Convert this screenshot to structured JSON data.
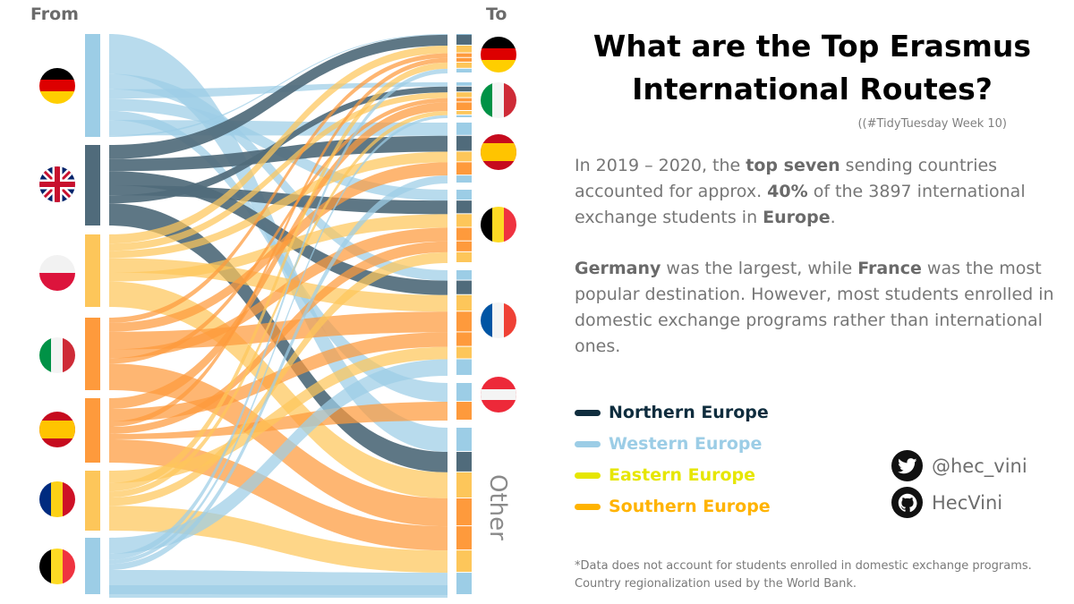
{
  "headers": {
    "from": "From",
    "to": "To"
  },
  "title_line1": "What are the Top Erasmus",
  "title_line2": "International Routes?",
  "subtitle": "((#TidyTuesday Week 10)",
  "paragraph1": {
    "t1": "In 2019 – 2020, the ",
    "b1": "top seven",
    "t2": " sending countries accounted for approx. ",
    "b2": "40%",
    "t3": " of the 3897 international exchange students in ",
    "b3": "Europe",
    "t4": "."
  },
  "paragraph2": {
    "b1": "Germany",
    "t1": " was the largest, while ",
    "b2": "France",
    "t2": " was the most popular destination. However, most students enrolled in domestic exchange programs rather than international ones."
  },
  "legend": [
    {
      "label": "Northern Europe",
      "color": "#0f2d3e"
    },
    {
      "label": "Western Europe",
      "color": "#9ccde6"
    },
    {
      "label": "Eastern Europe",
      "color": "#e6e600"
    },
    {
      "label": "Southern Europe",
      "color": "#ffb300"
    }
  ],
  "social": {
    "twitter": "@hec_vini",
    "github": "HecVini",
    "twitter_icon": "twitter-icon",
    "github_icon": "github-icon"
  },
  "footnote": "*Data does not account for students enrolled in domestic exchange programs. Country regionalization used by the World Bank.",
  "chart_data": {
    "type": "sankey",
    "region_colors": {
      "Northern": "#506b7b",
      "Western": "#9ccde6",
      "Eastern": "#fdc65a",
      "Southern": "#fe9a3c"
    },
    "sources": [
      {
        "name": "Germany",
        "flag": "de",
        "region": "Western"
      },
      {
        "name": "United Kingdom",
        "flag": "gb",
        "region": "Northern"
      },
      {
        "name": "Poland",
        "flag": "pl",
        "region": "Eastern"
      },
      {
        "name": "Italy",
        "flag": "it",
        "region": "Southern"
      },
      {
        "name": "Spain",
        "flag": "es",
        "region": "Southern"
      },
      {
        "name": "Romania",
        "flag": "ro",
        "region": "Eastern"
      },
      {
        "name": "Belgium",
        "flag": "be",
        "region": "Western"
      }
    ],
    "targets": [
      {
        "name": "Germany",
        "flag": "de",
        "label": ""
      },
      {
        "name": "Italy",
        "flag": "it",
        "label": ""
      },
      {
        "name": "Spain",
        "flag": "es",
        "label": ""
      },
      {
        "name": "Belgium",
        "flag": "be",
        "label": ""
      },
      {
        "name": "France",
        "flag": "fr",
        "label": ""
      },
      {
        "name": "Austria",
        "flag": "at",
        "label": ""
      },
      {
        "name": "Other",
        "flag": "",
        "label": "Other"
      }
    ]
  }
}
